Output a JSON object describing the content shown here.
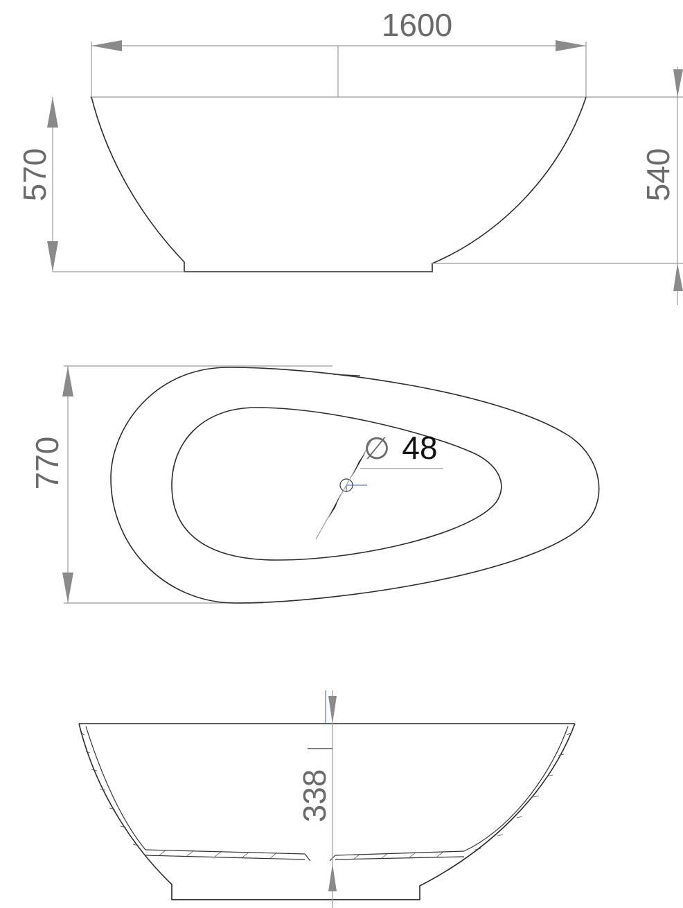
{
  "dimensions": {
    "length": "1600",
    "outer_height": "570",
    "inner_height": "540",
    "width": "770",
    "drain_diameter": "48",
    "drain_symbol": "∅",
    "depth": "338"
  }
}
